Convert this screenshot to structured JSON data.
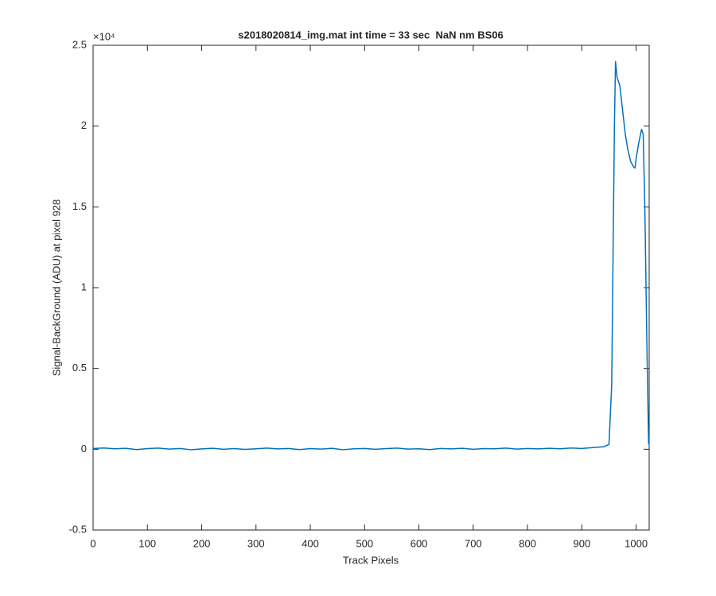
{
  "chart_data": {
    "type": "line",
    "title": "s2018020814_img.mat int time = 33 sec  NaN nm BS06",
    "x_label": "Track Pixels",
    "y_label": "Signal-BackGround (ADU) at pixel 928",
    "y_scale_label": "×10⁴",
    "color": "#0072bd",
    "x": [
      0,
      20,
      40,
      60,
      80,
      100,
      120,
      140,
      160,
      180,
      200,
      220,
      240,
      260,
      280,
      300,
      320,
      340,
      360,
      380,
      400,
      420,
      440,
      460,
      480,
      500,
      520,
      540,
      560,
      580,
      600,
      620,
      640,
      660,
      680,
      700,
      720,
      740,
      760,
      780,
      800,
      820,
      840,
      860,
      880,
      900,
      920,
      940,
      950,
      955,
      960,
      962,
      965,
      970,
      975,
      980,
      985,
      990,
      995,
      998,
      1000,
      1005,
      1010,
      1013,
      1016,
      1020,
      1023
    ],
    "values": [
      50,
      80,
      30,
      60,
      -20,
      40,
      70,
      10,
      50,
      -30,
      20,
      60,
      0,
      40,
      -10,
      30,
      70,
      20,
      50,
      -20,
      40,
      10,
      60,
      -30,
      30,
      50,
      0,
      40,
      70,
      10,
      30,
      -20,
      50,
      20,
      60,
      0,
      40,
      30,
      70,
      10,
      50,
      20,
      60,
      30,
      80,
      50,
      100,
      150,
      300,
      4000,
      20000,
      24000,
      23000,
      22500,
      21000,
      19500,
      18500,
      17800,
      17500,
      17400,
      18000,
      19000,
      19800,
      19500,
      15000,
      6000,
      300
    ],
    "xlim": [
      0,
      1024
    ],
    "xticks": [
      0,
      100,
      200,
      300,
      400,
      500,
      600,
      700,
      800,
      900,
      1000
    ],
    "ylim": [
      -5000,
      25000
    ],
    "yticks": [
      {
        "value": -5000,
        "label": "-0.5"
      },
      {
        "value": 0,
        "label": "0"
      },
      {
        "value": 5000,
        "label": "0.5"
      },
      {
        "value": 10000,
        "label": "1"
      },
      {
        "value": 15000,
        "label": "1.5"
      },
      {
        "value": 20000,
        "label": "2"
      },
      {
        "value": 25000,
        "label": "2.5"
      }
    ],
    "grid": false
  }
}
